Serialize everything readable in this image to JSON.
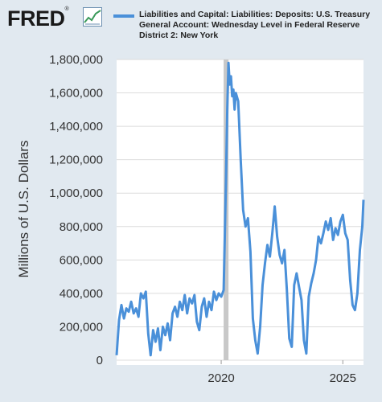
{
  "header": {
    "logo_text": "FRED",
    "logo_reg": "®",
    "legend_label": "Liabilities and Capital: Liabilities: Deposits: U.S. Treasury General Account: Wednesday Level in Federal Reserve District 2: New York",
    "legend_color": "#4a90d9"
  },
  "chart_data": {
    "type": "line",
    "title": "",
    "xlabel": "",
    "ylabel": "Millions of U.S. Dollars",
    "ylim": [
      0,
      1800000
    ],
    "xlim": [
      2015.7,
      2025.85
    ],
    "yticks": [
      0,
      200000,
      400000,
      600000,
      800000,
      1000000,
      1200000,
      1400000,
      1600000,
      1800000
    ],
    "ytick_labels": [
      "0",
      "200,000",
      "400,000",
      "600,000",
      "800,000",
      "1,000,000",
      "1,200,000",
      "1,400,000",
      "1,600,000",
      "1,800,000"
    ],
    "xticks": [
      2020,
      2025
    ],
    "xtick_labels": [
      "2020",
      "2025"
    ],
    "recession_shading": [
      2020.1,
      2020.3
    ],
    "grid": "horizontal",
    "series": [
      {
        "color": "#4a90d9",
        "x": [
          2015.7,
          2015.8,
          2015.9,
          2016.0,
          2016.1,
          2016.2,
          2016.3,
          2016.4,
          2016.5,
          2016.6,
          2016.7,
          2016.8,
          2016.9,
          2017.0,
          2017.1,
          2017.2,
          2017.3,
          2017.4,
          2017.5,
          2017.6,
          2017.7,
          2017.8,
          2017.9,
          2018.0,
          2018.1,
          2018.2,
          2018.3,
          2018.4,
          2018.5,
          2018.6,
          2018.7,
          2018.8,
          2018.9,
          2019.0,
          2019.1,
          2019.2,
          2019.3,
          2019.4,
          2019.5,
          2019.6,
          2019.7,
          2019.8,
          2019.9,
          2020.0,
          2020.1,
          2020.2,
          2020.25,
          2020.3,
          2020.35,
          2020.4,
          2020.45,
          2020.5,
          2020.55,
          2020.6,
          2020.7,
          2020.8,
          2020.9,
          2021.0,
          2021.1,
          2021.2,
          2021.3,
          2021.4,
          2021.5,
          2021.6,
          2021.7,
          2021.8,
          2021.9,
          2022.0,
          2022.1,
          2022.2,
          2022.3,
          2022.4,
          2022.5,
          2022.6,
          2022.7,
          2022.8,
          2022.9,
          2023.0,
          2023.1,
          2023.2,
          2023.3,
          2023.4,
          2023.5,
          2023.6,
          2023.7,
          2023.8,
          2023.9,
          2024.0,
          2024.1,
          2024.2,
          2024.3,
          2024.4,
          2024.5,
          2024.6,
          2024.7,
          2024.8,
          2024.9,
          2025.0,
          2025.1,
          2025.2,
          2025.3,
          2025.4,
          2025.5,
          2025.6,
          2025.7,
          2025.8,
          2025.85
        ],
        "y": [
          30000,
          240000,
          330000,
          250000,
          310000,
          290000,
          350000,
          280000,
          310000,
          260000,
          400000,
          370000,
          410000,
          160000,
          30000,
          180000,
          110000,
          190000,
          60000,
          200000,
          150000,
          220000,
          120000,
          280000,
          320000,
          260000,
          350000,
          300000,
          390000,
          280000,
          370000,
          340000,
          390000,
          230000,
          180000,
          320000,
          370000,
          260000,
          350000,
          300000,
          410000,
          360000,
          400000,
          380000,
          420000,
          1100000,
          1500000,
          1780000,
          1650000,
          1700000,
          1580000,
          1620000,
          1500000,
          1600000,
          1550000,
          1200000,
          900000,
          800000,
          850000,
          650000,
          250000,
          120000,
          40000,
          200000,
          450000,
          580000,
          690000,
          620000,
          760000,
          920000,
          740000,
          630000,
          580000,
          660000,
          420000,
          130000,
          80000,
          450000,
          520000,
          440000,
          360000,
          120000,
          40000,
          380000,
          460000,
          520000,
          600000,
          740000,
          700000,
          760000,
          830000,
          780000,
          850000,
          720000,
          790000,
          750000,
          830000,
          870000,
          760000,
          720000,
          480000,
          330000,
          300000,
          400000,
          660000,
          800000,
          960000
        ]
      }
    ]
  }
}
